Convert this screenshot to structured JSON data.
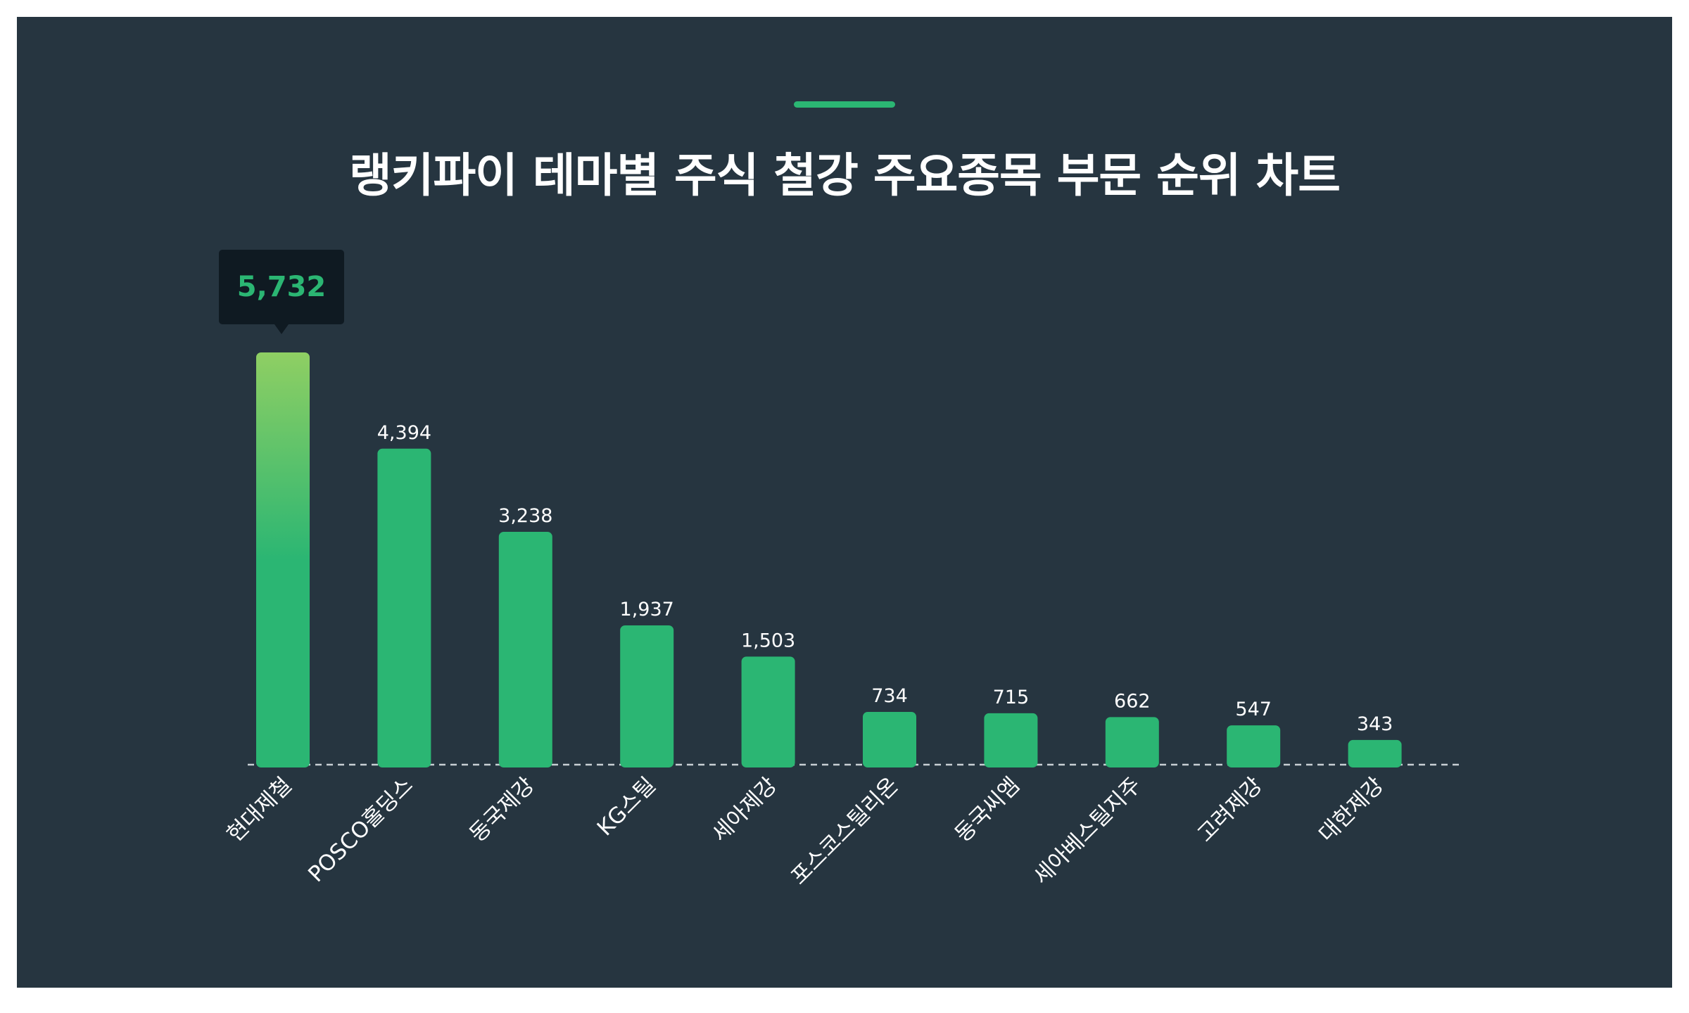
{
  "title": "랭키파이 테마별 주식 철강 주요종목 부문 순위 차트",
  "colors": {
    "background": "#263540",
    "bar": "#2bb673",
    "highlight_top": "#8fcf63",
    "tooltip_bg": "#0f1a22",
    "accent": "#2bb673"
  },
  "chart_data": {
    "type": "bar",
    "title": "랭키파이 테마별 주식 철강 주요종목 부문 순위 차트",
    "categories": [
      "현대제철",
      "POSCO홀딩스",
      "동국제강",
      "KG스틸",
      "세아제강",
      "포스코스틸리온",
      "동국씨엠",
      "세아베스틸지주",
      "고려제강",
      "대한제강"
    ],
    "values": [
      5732,
      4394,
      3238,
      1937,
      1503,
      734,
      715,
      662,
      547,
      343
    ],
    "value_labels": [
      "5,732",
      "4,394",
      "3,238",
      "1,937",
      "1,503",
      "734",
      "715",
      "662",
      "547",
      "343"
    ],
    "highlight_index": 0,
    "xlabel": "",
    "ylabel": "",
    "ylim": [
      0,
      5732
    ],
    "grid": false,
    "legend": "none"
  }
}
